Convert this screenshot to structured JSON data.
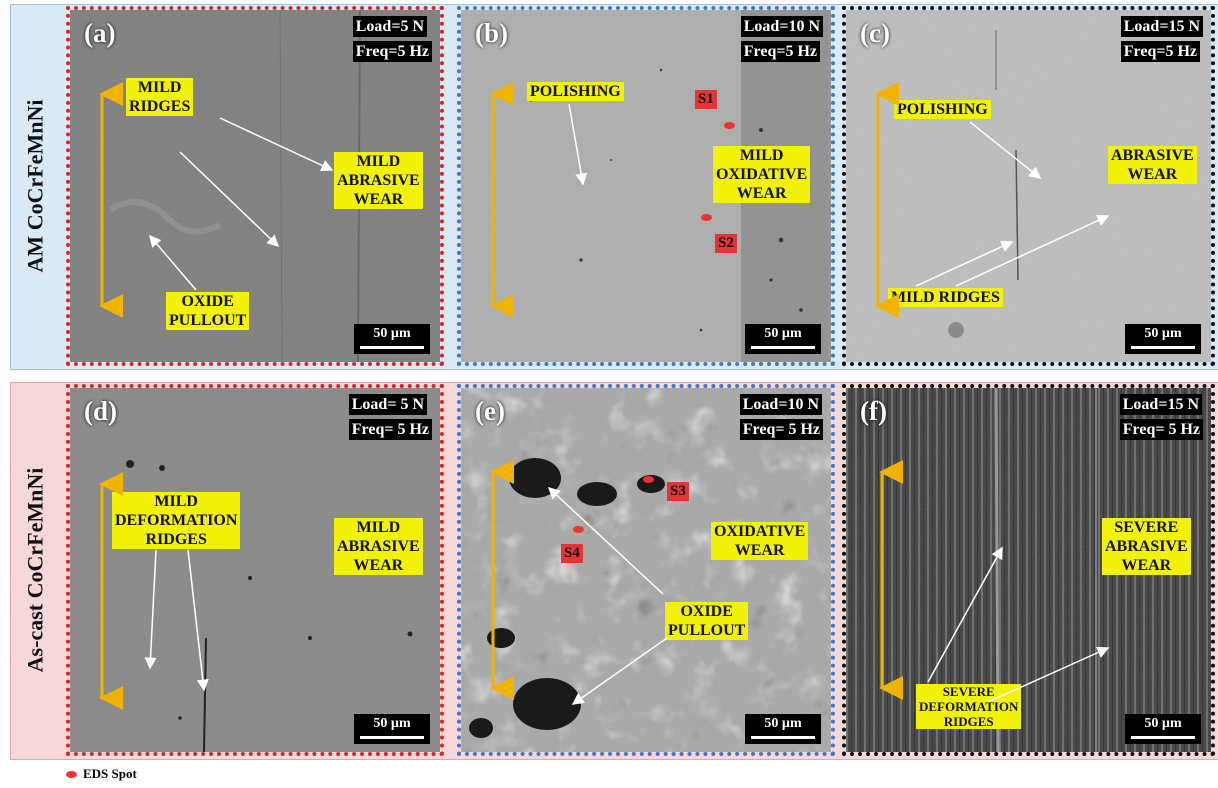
{
  "rows": [
    {
      "label": "AM CoCrFeMnNi"
    },
    {
      "label": "As-cast CoCrFeMnNi"
    }
  ],
  "panels": [
    {
      "id": "(a)",
      "load": "Load=5 N",
      "freq": "Freq=5 Hz",
      "scale": "50 µm",
      "annotations": [
        [
          "MILD",
          "RIDGES"
        ],
        [
          "MILD",
          "ABRASIVE",
          "WEAR"
        ],
        [
          "OXIDE",
          "PULLOUT"
        ]
      ]
    },
    {
      "id": "(b)",
      "load": "Load=10 N",
      "freq": "Freq=5 Hz",
      "scale": "50 µm",
      "annotations": [
        [
          "POLISHING"
        ],
        [
          "MILD",
          "OXIDATIVE",
          "WEAR"
        ]
      ],
      "spots": [
        "S1",
        "S2"
      ]
    },
    {
      "id": "(c)",
      "load": "Load=15 N",
      "freq": "Freq=5 Hz",
      "scale": "50 µm",
      "annotations": [
        [
          "POLISHING"
        ],
        [
          "ABRASIVE",
          "WEAR"
        ],
        [
          "MILD RIDGES"
        ]
      ]
    },
    {
      "id": "(d)",
      "load": "Load= 5 N",
      "freq": "Freq=  5 Hz",
      "scale": "50 µm",
      "annotations": [
        [
          "MILD",
          "DEFORMATION",
          "RIDGES"
        ],
        [
          "MILD",
          "ABRASIVE",
          "WEAR"
        ]
      ]
    },
    {
      "id": "(e)",
      "load": "Load=10 N",
      "freq": "Freq=  5 Hz",
      "scale": "50 µm",
      "annotations": [
        [
          "OXIDATIVE",
          "WEAR"
        ],
        [
          "OXIDE",
          "PULLOUT"
        ]
      ],
      "spots": [
        "S3",
        "S4"
      ]
    },
    {
      "id": "(f)",
      "load": "Load=15 N",
      "freq": "Freq=  5 Hz",
      "scale": "50 µm",
      "annotations": [
        [
          "SEVERE",
          "ABRASIVE",
          "WEAR"
        ],
        [
          "SEVERE",
          "DEFORMATION",
          "RIDGES"
        ]
      ]
    }
  ],
  "legend": {
    "label": "EDS Spot"
  },
  "colors": {
    "highlight": "#f2f208",
    "spot": "#e33535",
    "arrow_sliding": "#f0b400",
    "red_frame": "#d9252a",
    "blue_frame": "#3f78c6"
  }
}
